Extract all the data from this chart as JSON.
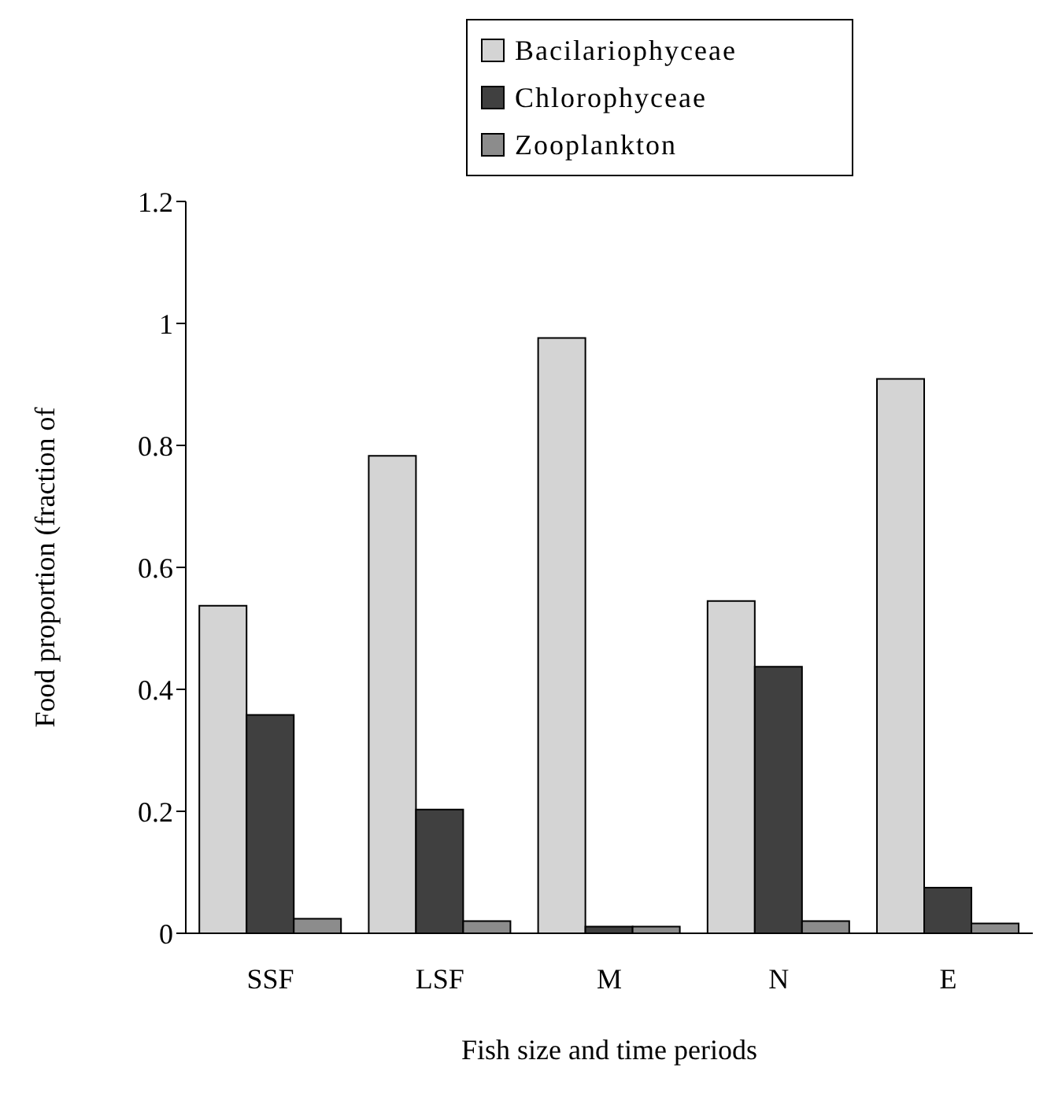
{
  "chart_data": {
    "type": "bar",
    "xlabel": "Fish size and time periods",
    "ylabel": "Food proportion (fraction of",
    "categories": [
      "SSF",
      "LSF",
      "M",
      "N",
      "E"
    ],
    "series": [
      {
        "name": "Bacilariophyceae",
        "color": "#d4d4d4",
        "values": [
          0.537,
          0.783,
          0.976,
          0.545,
          0.909
        ]
      },
      {
        "name": "Chlorophyceae",
        "color": "#404040",
        "values": [
          0.358,
          0.203,
          0.011,
          0.437,
          0.075
        ]
      },
      {
        "name": "Zooplankton",
        "color": "#8c8c8c",
        "values": [
          0.024,
          0.02,
          0.011,
          0.02,
          0.016
        ]
      }
    ],
    "ylim": [
      0,
      1.2
    ],
    "yticks": [
      0,
      0.2,
      0.4,
      0.6,
      0.8,
      1,
      1.2
    ],
    "grid": false,
    "legend": "top"
  }
}
